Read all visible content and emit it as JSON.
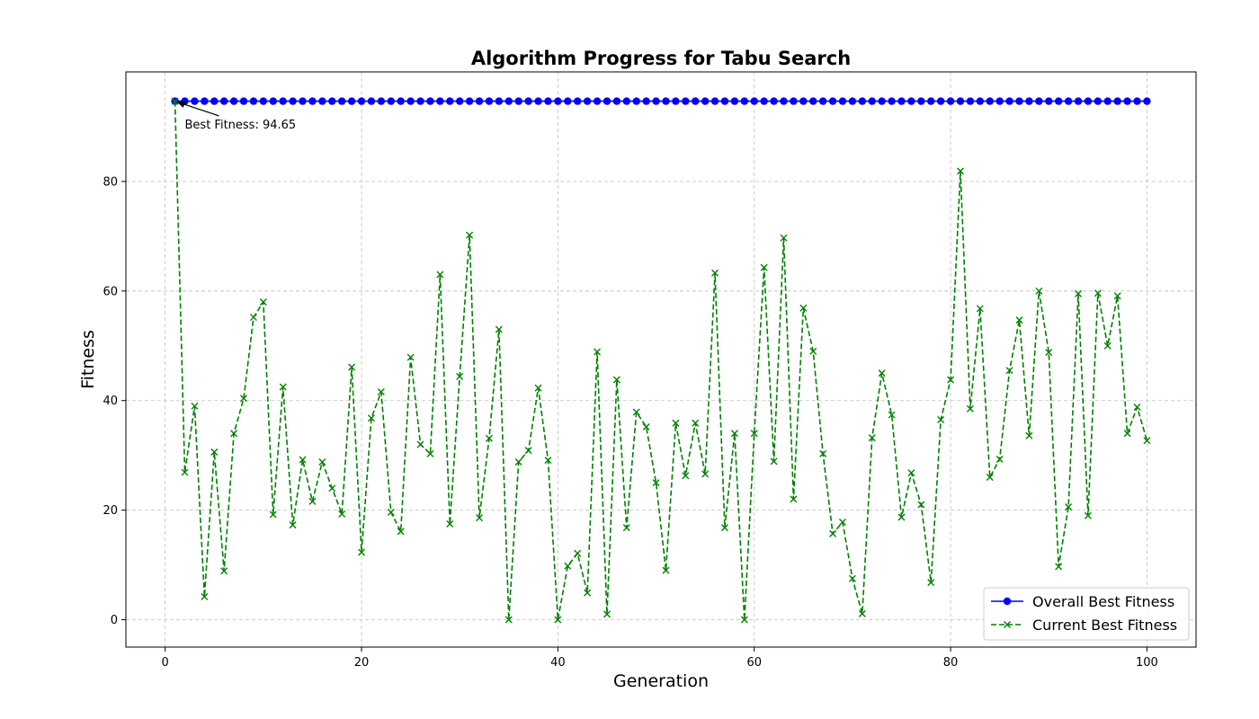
{
  "chart_data": {
    "type": "line",
    "title": "Algorithm Progress for Tabu Search",
    "xlabel": "Generation",
    "ylabel": "Fitness",
    "xlim": [
      -4,
      105
    ],
    "ylim": [
      -5,
      100
    ],
    "xticks": [
      0,
      20,
      40,
      60,
      80,
      100
    ],
    "yticks": [
      0,
      20,
      40,
      60,
      80
    ],
    "grid": true,
    "legend_position": "lower-right",
    "x": [
      1,
      2,
      3,
      4,
      5,
      6,
      7,
      8,
      9,
      10,
      11,
      12,
      13,
      14,
      15,
      16,
      17,
      18,
      19,
      20,
      21,
      22,
      23,
      24,
      25,
      26,
      27,
      28,
      29,
      30,
      31,
      32,
      33,
      34,
      35,
      36,
      37,
      38,
      39,
      40,
      41,
      42,
      43,
      44,
      45,
      46,
      47,
      48,
      49,
      50,
      51,
      52,
      53,
      54,
      55,
      56,
      57,
      58,
      59,
      60,
      61,
      62,
      63,
      64,
      65,
      66,
      67,
      68,
      69,
      70,
      71,
      72,
      73,
      74,
      75,
      76,
      77,
      78,
      79,
      80,
      81,
      82,
      83,
      84,
      85,
      86,
      87,
      88,
      89,
      90,
      91,
      92,
      93,
      94,
      95,
      96,
      97,
      98,
      99,
      100
    ],
    "series": [
      {
        "name": "Overall Best Fitness",
        "color": "#0000ff",
        "marker": "circle",
        "line_style": "solid",
        "values": [
          94.65,
          94.65,
          94.65,
          94.65,
          94.65,
          94.65,
          94.65,
          94.65,
          94.65,
          94.65,
          94.65,
          94.65,
          94.65,
          94.65,
          94.65,
          94.65,
          94.65,
          94.65,
          94.65,
          94.65,
          94.65,
          94.65,
          94.65,
          94.65,
          94.65,
          94.65,
          94.65,
          94.65,
          94.65,
          94.65,
          94.65,
          94.65,
          94.65,
          94.65,
          94.65,
          94.65,
          94.65,
          94.65,
          94.65,
          94.65,
          94.65,
          94.65,
          94.65,
          94.65,
          94.65,
          94.65,
          94.65,
          94.65,
          94.65,
          94.65,
          94.65,
          94.65,
          94.65,
          94.65,
          94.65,
          94.65,
          94.65,
          94.65,
          94.65,
          94.65,
          94.65,
          94.65,
          94.65,
          94.65,
          94.65,
          94.65,
          94.65,
          94.65,
          94.65,
          94.65,
          94.65,
          94.65,
          94.65,
          94.65,
          94.65,
          94.65,
          94.65,
          94.65,
          94.65,
          94.65,
          94.65,
          94.65,
          94.65,
          94.65,
          94.65,
          94.65,
          94.65,
          94.65,
          94.65,
          94.65,
          94.65,
          94.65,
          94.65,
          94.65,
          94.65,
          94.65,
          94.65,
          94.65,
          94.65,
          94.65
        ]
      },
      {
        "name": "Current Best Fitness",
        "color": "#008000",
        "marker": "x",
        "line_style": "dashed",
        "values": [
          94.65,
          26.9,
          39.0,
          4.2,
          30.6,
          8.9,
          34.0,
          40.4,
          55.2,
          58.0,
          19.2,
          42.5,
          17.3,
          29.2,
          21.6,
          28.8,
          24.0,
          19.3,
          46.1,
          12.3,
          36.8,
          41.6,
          19.6,
          16.1,
          47.9,
          32.0,
          30.3,
          63.0,
          17.5,
          44.4,
          70.2,
          18.6,
          33.1,
          53.0,
          0.0,
          28.8,
          30.9,
          42.3,
          29.1,
          0.0,
          9.8,
          12.1,
          4.9,
          48.9,
          1.0,
          43.8,
          16.8,
          37.9,
          35.2,
          25.0,
          9.0,
          35.9,
          26.3,
          35.9,
          26.6,
          63.3,
          16.8,
          34.0,
          0.0,
          34.0,
          64.3,
          28.9,
          69.7,
          22.0,
          56.9,
          49.0,
          30.3,
          15.7,
          17.8,
          7.5,
          1.1,
          33.2,
          45.0,
          37.4,
          18.7,
          26.8,
          21.0,
          6.8,
          36.5,
          43.8,
          81.9,
          38.5,
          56.8,
          26.0,
          29.3,
          45.5,
          54.7,
          33.6,
          60.0,
          48.8,
          9.7,
          20.6,
          59.5,
          19.0,
          59.6,
          50.0,
          59.1,
          34.0,
          38.8,
          32.7
        ]
      }
    ],
    "annotation": {
      "text": "Best Fitness: 94.65",
      "point_x": 1,
      "point_y": 94.65,
      "text_x": 2,
      "text_y": 90.5
    }
  }
}
